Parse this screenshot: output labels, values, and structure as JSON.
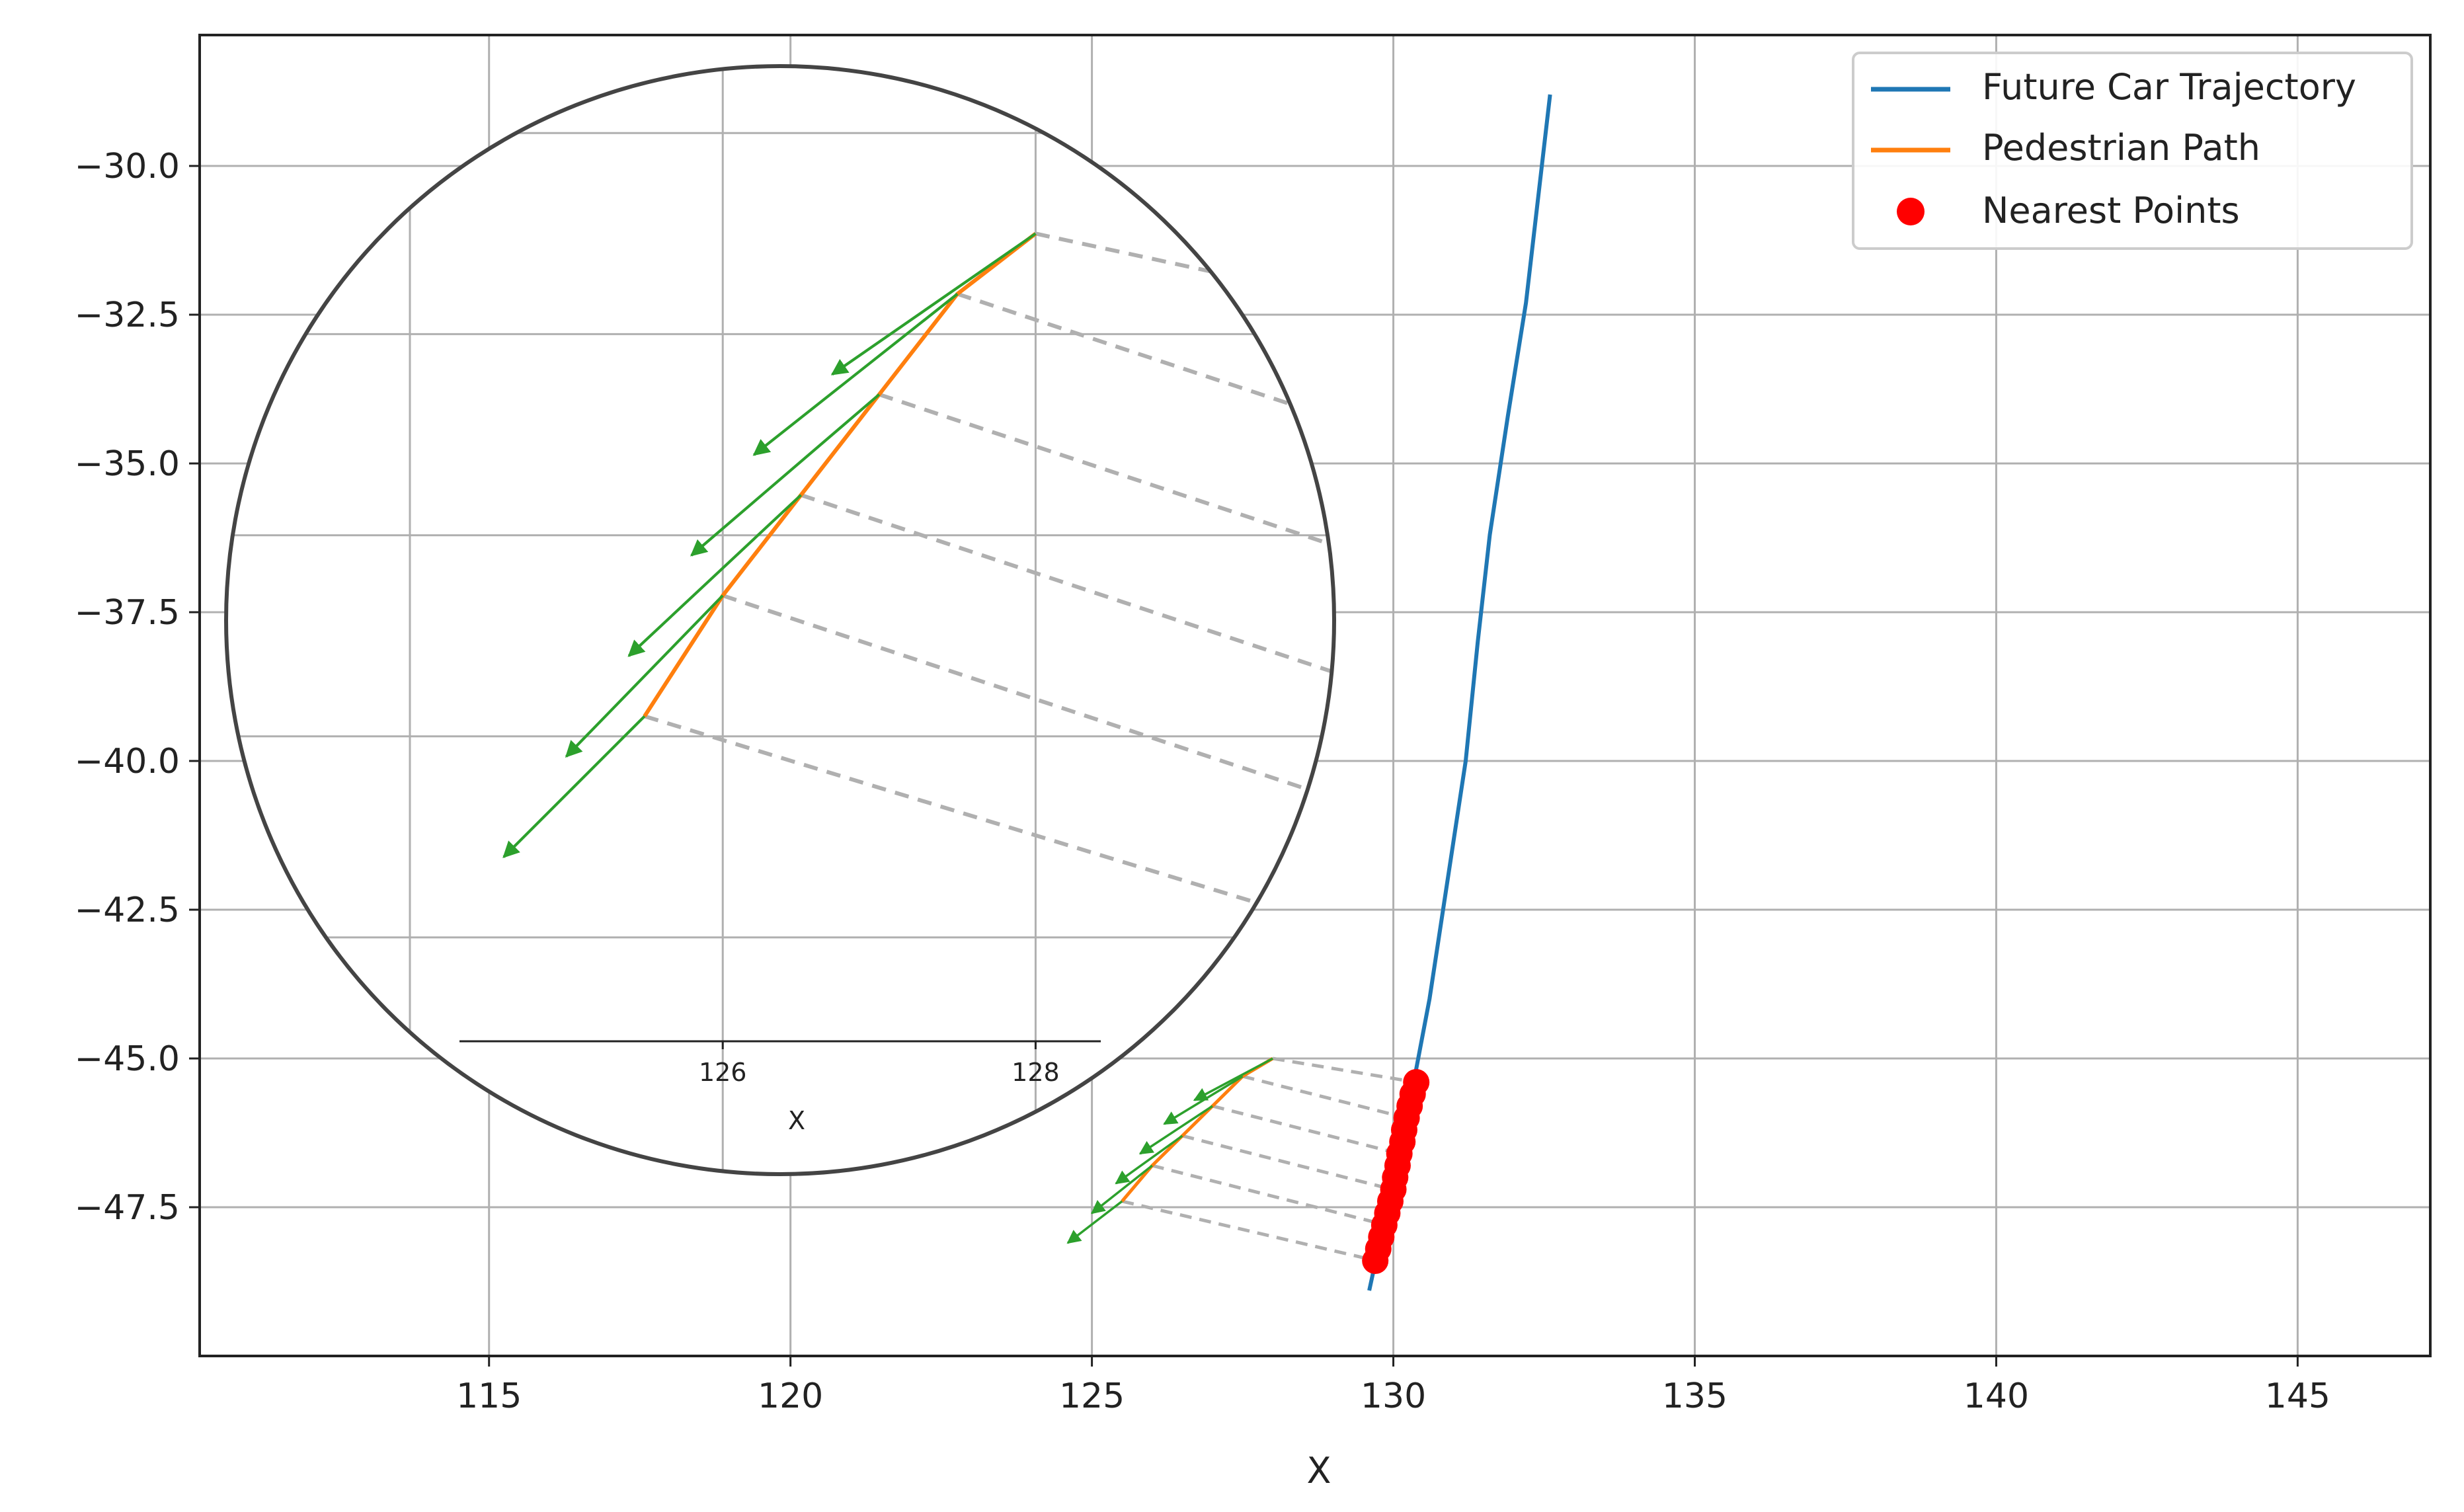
{
  "chart_data": {
    "type": "line",
    "title": "",
    "xlabel": "X",
    "ylabel": "",
    "xlim": [
      110.2,
      147.2
    ],
    "ylim": [
      -50.0,
      -27.8
    ],
    "grid": true,
    "x_ticks": [
      115,
      120,
      125,
      130,
      135,
      140,
      145
    ],
    "y_ticks": [
      -30.0,
      -32.5,
      -35.0,
      -37.5,
      -40.0,
      -42.5,
      -45.0,
      -47.5
    ],
    "legend": {
      "placement": "top-right",
      "entries": [
        {
          "label": "Future Car Trajectory",
          "kind": "line",
          "color": "#1f77b4"
        },
        {
          "label": "Pedestrian Path",
          "kind": "line",
          "color": "#ff7f0e"
        },
        {
          "label": "Nearest Points",
          "kind": "marker",
          "color": "#ff0000"
        }
      ]
    },
    "series": [
      {
        "name": "Future Car Trajectory",
        "kind": "line",
        "color": "#1f77b4",
        "points": [
          [
            129.6,
            -48.9
          ],
          [
            129.9,
            -47.5
          ],
          [
            130.3,
            -45.6
          ],
          [
            130.6,
            -44.0
          ],
          [
            130.9,
            -42.0
          ],
          [
            131.2,
            -40.0
          ],
          [
            131.4,
            -38.0
          ],
          [
            131.6,
            -36.2
          ],
          [
            131.9,
            -34.2
          ],
          [
            132.2,
            -32.3
          ],
          [
            132.6,
            -28.8
          ]
        ]
      },
      {
        "name": "Pedestrian Path",
        "kind": "line",
        "color": "#ff7f0e",
        "points": [
          [
            125.5,
            -47.4
          ],
          [
            126.0,
            -46.8
          ],
          [
            126.5,
            -46.3
          ],
          [
            127.0,
            -45.8
          ],
          [
            127.5,
            -45.3
          ],
          [
            128.0,
            -45.0
          ]
        ]
      },
      {
        "name": "Nearest Points",
        "kind": "scatter",
        "color": "#ff0000",
        "points": [
          [
            129.7,
            -48.4
          ],
          [
            129.75,
            -48.2
          ],
          [
            129.8,
            -48.0
          ],
          [
            129.85,
            -47.8
          ],
          [
            129.9,
            -47.6
          ],
          [
            129.95,
            -47.4
          ],
          [
            130.0,
            -47.2
          ],
          [
            130.03,
            -47.0
          ],
          [
            130.07,
            -46.8
          ],
          [
            130.1,
            -46.6
          ],
          [
            130.15,
            -46.4
          ],
          [
            130.18,
            -46.2
          ],
          [
            130.22,
            -46.0
          ],
          [
            130.27,
            -45.8
          ],
          [
            130.32,
            -45.6
          ],
          [
            130.38,
            -45.4
          ]
        ]
      },
      {
        "name": "Heading Arrows",
        "kind": "arrows",
        "color": "#2ca02c",
        "segments": [
          [
            [
              128.0,
              -45.0
            ],
            [
              126.7,
              -45.7
            ]
          ],
          [
            [
              127.5,
              -45.3
            ],
            [
              126.2,
              -46.1
            ]
          ],
          [
            [
              127.0,
              -45.8
            ],
            [
              125.8,
              -46.6
            ]
          ],
          [
            [
              126.5,
              -46.3
            ],
            [
              125.4,
              -47.1
            ]
          ],
          [
            [
              126.0,
              -46.8
            ],
            [
              125.0,
              -47.6
            ]
          ],
          [
            [
              125.5,
              -47.4
            ],
            [
              124.6,
              -48.1
            ]
          ]
        ]
      },
      {
        "name": "Connector Lines",
        "kind": "dashed",
        "color": "#b0b0b0",
        "segments": [
          [
            [
              128.0,
              -45.0
            ],
            [
              130.38,
              -45.4
            ]
          ],
          [
            [
              127.5,
              -45.3
            ],
            [
              130.22,
              -46.0
            ]
          ],
          [
            [
              127.0,
              -45.8
            ],
            [
              130.1,
              -46.6
            ]
          ],
          [
            [
              126.5,
              -46.3
            ],
            [
              129.98,
              -47.2
            ]
          ],
          [
            [
              126.0,
              -46.8
            ],
            [
              129.88,
              -47.8
            ]
          ],
          [
            [
              125.5,
              -47.4
            ],
            [
              129.72,
              -48.4
            ]
          ]
        ]
      }
    ],
    "inset": {
      "shape": "circle",
      "xlabel": "X",
      "x_ticks": [
        126,
        128
      ],
      "xlim": [
        124.0,
        129.6
      ],
      "ylim": [
        -49.0,
        -44.2
      ],
      "grid": true
    }
  }
}
